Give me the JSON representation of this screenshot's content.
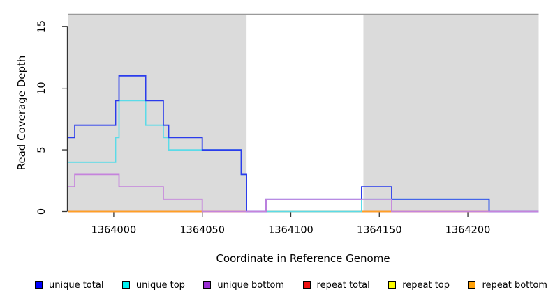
{
  "chart_data": {
    "type": "line",
    "subtype": "step",
    "title": "",
    "xlabel": "Coordinate in Reference Genome",
    "ylabel": "Read Coverage Depth",
    "xlim": [
      1363974,
      1364240
    ],
    "ylim": [
      0,
      16
    ],
    "x_ticks": [
      1364000,
      1364050,
      1364100,
      1364150,
      1364200
    ],
    "y_ticks": [
      0,
      5,
      10,
      15
    ],
    "grid": false,
    "legend_position": "bottom",
    "axis_color": "#333333",
    "top_border_color": "#9a9a9a",
    "shaded_regions": [
      {
        "x0": 1363974,
        "x1": 1364075,
        "color": "#dbdbdb"
      },
      {
        "x0": 1364141,
        "x1": 1364240,
        "color": "#dbdbdb"
      }
    ],
    "series": [
      {
        "name": "unique total",
        "color": "#0000fe",
        "line_color": "#2b3cec",
        "z": 5,
        "points": [
          [
            1363974,
            6
          ],
          [
            1363978,
            7
          ],
          [
            1364001,
            9
          ],
          [
            1364003,
            11
          ],
          [
            1364018,
            9
          ],
          [
            1364028,
            7
          ],
          [
            1364031,
            6
          ],
          [
            1364050,
            5
          ],
          [
            1364072,
            3
          ],
          [
            1364075,
            0
          ],
          [
            1364086,
            1
          ],
          [
            1364140,
            2
          ],
          [
            1364157,
            1
          ],
          [
            1364212,
            0
          ]
        ]
      },
      {
        "name": "unique top",
        "color": "#00f2f2",
        "line_color": "#5bdbe8",
        "z": 4,
        "points": [
          [
            1363974,
            4
          ],
          [
            1364001,
            6
          ],
          [
            1364003,
            9
          ],
          [
            1364018,
            7
          ],
          [
            1364028,
            6
          ],
          [
            1364031,
            5
          ],
          [
            1364072,
            3
          ],
          [
            1364075,
            0
          ],
          [
            1364140,
            1
          ],
          [
            1364212,
            0
          ]
        ]
      },
      {
        "name": "unique bottom",
        "color": "#9b2fd4",
        "line_color": "#c583dc",
        "z": 6,
        "points": [
          [
            1363974,
            2
          ],
          [
            1363978,
            3
          ],
          [
            1364003,
            2
          ],
          [
            1364028,
            1
          ],
          [
            1364050,
            0
          ],
          [
            1364086,
            1
          ],
          [
            1364157,
            0
          ]
        ]
      },
      {
        "name": "repeat total",
        "color": "#ee1111",
        "line_color": "#dc4868",
        "z": 2,
        "points": [
          [
            1363974,
            0
          ]
        ]
      },
      {
        "name": "repeat top",
        "color": "#fcfc00",
        "line_color": "#f2f20c",
        "z": 1,
        "points": [
          [
            1363974,
            0
          ]
        ]
      },
      {
        "name": "repeat bottom",
        "color": "#ffa10a",
        "line_color": "#ffa024",
        "z": 3,
        "points": [
          [
            1363974,
            0
          ]
        ]
      }
    ]
  }
}
